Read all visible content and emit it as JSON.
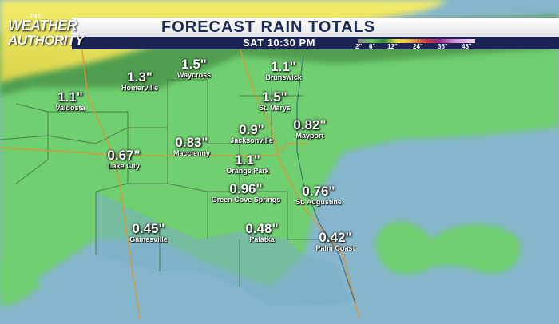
{
  "header": {
    "title": "FORECAST RAIN TOTALS",
    "time": "SAT 10:30 PM",
    "legend_ticks": [
      "2\"",
      "6\"",
      "12\"",
      "24\"",
      "36\"",
      "48\""
    ]
  },
  "logo": {
    "line1": "THE",
    "line2": "WEATHER",
    "line3": "AUTHORITY"
  },
  "locations": [
    {
      "city": "Waycross",
      "value": "1.5\""
    },
    {
      "city": "Homerville",
      "value": "1.3\""
    },
    {
      "city": "Brunswick",
      "value": "1.1\""
    },
    {
      "city": "Valdosta",
      "value": "1.1\""
    },
    {
      "city": "St. Marys",
      "value": "1.5\""
    },
    {
      "city": "Jacksonville",
      "value": "0.9\""
    },
    {
      "city": "Mayport",
      "value": "0.82\""
    },
    {
      "city": "Macclenny",
      "value": "0.83\""
    },
    {
      "city": "Lake City",
      "value": "0.67\""
    },
    {
      "city": "Orange Park",
      "value": "1.1\""
    },
    {
      "city": "Green Cove Springs",
      "value": "0.96\""
    },
    {
      "city": "St. Augustine",
      "value": "0.76\""
    },
    {
      "city": "Gainesville",
      "value": "0.45\""
    },
    {
      "city": "Palatka",
      "value": "0.48\""
    },
    {
      "city": "Palm Coast",
      "value": "0.42\""
    }
  ],
  "colors": {
    "ocean": "#7fb0c8",
    "rain_green": "#66cc66",
    "rain_yellow": "#e8e04a",
    "header_navy": "#1b2452"
  }
}
